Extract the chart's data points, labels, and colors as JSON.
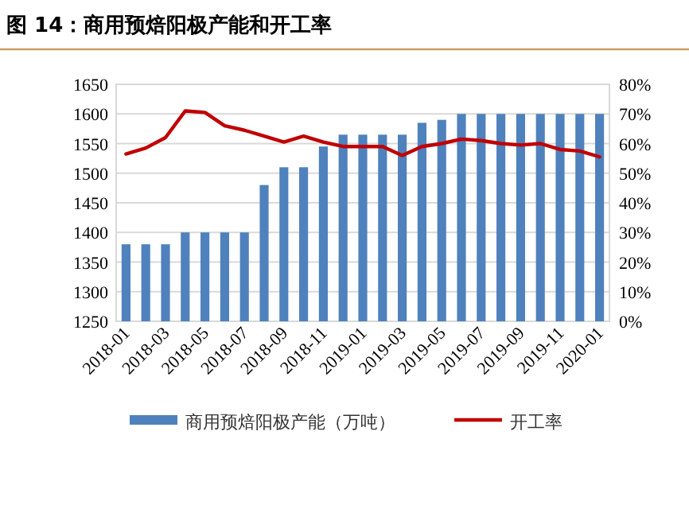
{
  "chart_data": {
    "type": "bar",
    "title": "图 14：商用预焙阳极产能和开工率",
    "categories": [
      "2018-01",
      null,
      "2018-03",
      null,
      "2018-05",
      null,
      "2018-07",
      null,
      "2018-09",
      null,
      "2018-11",
      null,
      "2019-01",
      null,
      "2019-03",
      null,
      "2019-05",
      null,
      "2019-07",
      null,
      "2019-09",
      null,
      "2019-11",
      null,
      "2020-01"
    ],
    "series": [
      {
        "name": "商用预焙阳极产能（万吨）",
        "color": "#4f81bd",
        "values": [
          1380,
          1380,
          1380,
          1400,
          1400,
          1400,
          1400,
          1480,
          1510,
          1510,
          1545,
          1565,
          1565,
          1565,
          1565,
          1585,
          1590,
          1600,
          1600,
          1600,
          1600,
          1600,
          1600,
          1600,
          1600
        ]
      },
      {
        "name": "开工率",
        "type": "line",
        "axis": "y2",
        "color": "#c00000",
        "values": [
          56.5,
          58.5,
          62,
          71,
          70.5,
          66,
          64.5,
          62.5,
          60.5,
          62.5,
          60.5,
          59,
          59,
          59,
          56,
          59,
          60,
          61.5,
          61,
          60,
          59.5,
          60,
          58,
          57.5,
          55.5
        ]
      }
    ],
    "ylim": [
      1250,
      1650
    ],
    "yticks": [
      1250,
      1300,
      1350,
      1400,
      1450,
      1500,
      1550,
      1600,
      1650
    ],
    "y2lim": [
      0,
      80
    ],
    "y2ticks": [
      {
        "value": 0,
        "label": "0%"
      },
      {
        "value": 10,
        "label": "10%"
      },
      {
        "value": 20,
        "label": "20%"
      },
      {
        "value": 30,
        "label": "30%"
      },
      {
        "value": 40,
        "label": "40%"
      },
      {
        "value": 50,
        "label": "50%"
      },
      {
        "value": 60,
        "label": "60%"
      },
      {
        "value": 70,
        "label": "70%"
      },
      {
        "value": 80,
        "label": "80%"
      }
    ],
    "grid": "y",
    "legend": "bottom"
  }
}
